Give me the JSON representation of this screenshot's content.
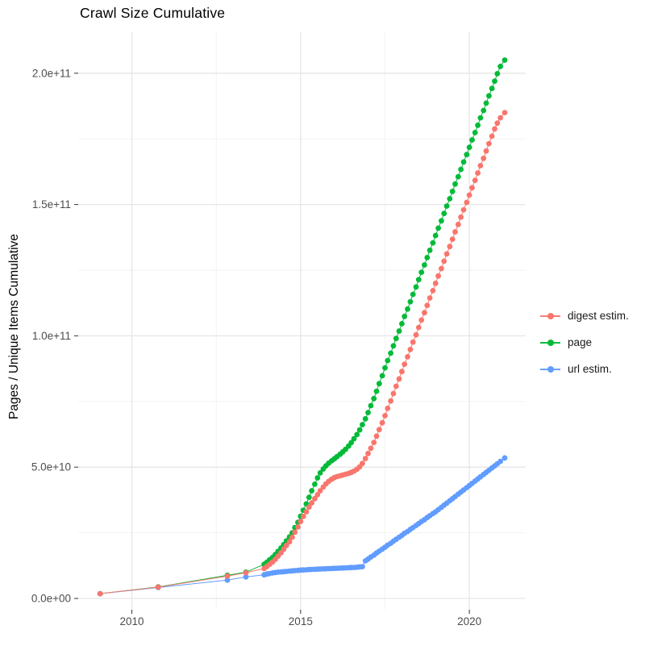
{
  "chart": {
    "title": "Crawl Size Cumulative",
    "ylabel": "Pages / Unique Items Cumulative",
    "xlabel": ""
  },
  "colors": {
    "digest": "#F8766D",
    "page": "#00BA38",
    "url": "#619CFF",
    "grid_major": "#E6E6E6",
    "grid_minor": "#F2F2F2",
    "axis_text": "#4D4D4D",
    "tick_mark": "#333333"
  },
  "chart_data": {
    "type": "scatter",
    "title": "Crawl Size Cumulative",
    "xlabel": "",
    "ylabel": "Pages / Unique Items Cumulative",
    "legend_position": "right",
    "grid": "on",
    "note_units": "point values given as [year, size_in_billions]; 50 billions = 5.0e+10 on axis",
    "x_range": [
      2008.41,
      2021.67
    ],
    "y_range_billions": [
      -4.3,
      215.6
    ],
    "x_ticks": {
      "major": [
        2010,
        2015,
        2020
      ],
      "minor": [
        2012.5,
        2017.5
      ],
      "labels": [
        "2010",
        "2015",
        "2020"
      ]
    },
    "y_ticks": {
      "major_billions": [
        0,
        50,
        100,
        150,
        200
      ],
      "minor_billions": [
        25,
        75,
        125,
        175
      ],
      "labels": [
        "0.0e+00",
        "5.0e+10",
        "1.0e+11",
        "1.5e+11",
        "2.0e+11"
      ]
    },
    "z_order": [
      1,
      2,
      0
    ],
    "series": [
      {
        "name": "digest estim.",
        "color": "#F8766D",
        "points": [
          [
            2009.06,
            1.8
          ],
          [
            2010.78,
            4.3
          ],
          [
            2012.83,
            8.5
          ],
          [
            2013.38,
            9.8
          ],
          [
            2013.92,
            11.4
          ],
          [
            2014,
            12.2
          ],
          [
            2014.08,
            13
          ],
          [
            2014.17,
            13.9
          ],
          [
            2014.25,
            14.9
          ],
          [
            2014.33,
            16.1
          ],
          [
            2014.42,
            17.4
          ],
          [
            2014.5,
            18.8
          ],
          [
            2014.58,
            20.2
          ],
          [
            2014.67,
            21.6
          ],
          [
            2014.75,
            23.3
          ],
          [
            2014.83,
            25.2
          ],
          [
            2014.92,
            27.2
          ],
          [
            2015,
            29.3
          ],
          [
            2015.08,
            31.2
          ],
          [
            2015.17,
            33
          ],
          [
            2015.25,
            34.8
          ],
          [
            2015.33,
            36.4
          ],
          [
            2015.42,
            38
          ],
          [
            2015.5,
            39.5
          ],
          [
            2015.58,
            41
          ],
          [
            2015.67,
            42.4
          ],
          [
            2015.75,
            43.6
          ],
          [
            2015.83,
            44.6
          ],
          [
            2015.92,
            45.4
          ],
          [
            2016,
            46
          ],
          [
            2016.08,
            46.4
          ],
          [
            2016.17,
            46.7
          ],
          [
            2016.25,
            47
          ],
          [
            2016.33,
            47.3
          ],
          [
            2016.42,
            47.6
          ],
          [
            2016.5,
            48
          ],
          [
            2016.58,
            48.5
          ],
          [
            2016.67,
            49.2
          ],
          [
            2016.75,
            50.1
          ],
          [
            2016.83,
            51.4
          ],
          [
            2016.92,
            53.3
          ],
          [
            2017,
            55.2
          ],
          [
            2017.08,
            57.2
          ],
          [
            2017.17,
            59.4
          ],
          [
            2017.25,
            61.8
          ],
          [
            2017.33,
            64.3
          ],
          [
            2017.42,
            66.9
          ],
          [
            2017.5,
            69.6
          ],
          [
            2017.58,
            72.4
          ],
          [
            2017.67,
            75.2
          ],
          [
            2017.75,
            78
          ],
          [
            2017.83,
            80.8
          ],
          [
            2017.92,
            83.6
          ],
          [
            2018,
            86.4
          ],
          [
            2018.08,
            89.2
          ],
          [
            2018.17,
            92
          ],
          [
            2018.25,
            94.8
          ],
          [
            2018.33,
            97.6
          ],
          [
            2018.42,
            100.4
          ],
          [
            2018.5,
            103.2
          ],
          [
            2018.58,
            106
          ],
          [
            2018.67,
            108.8
          ],
          [
            2018.75,
            111.6
          ],
          [
            2018.83,
            114.4
          ],
          [
            2018.92,
            117.2
          ],
          [
            2019,
            120
          ],
          [
            2019.08,
            122.8
          ],
          [
            2019.17,
            125.6
          ],
          [
            2019.25,
            128.4
          ],
          [
            2019.33,
            131.2
          ],
          [
            2019.42,
            134
          ],
          [
            2019.5,
            136.8
          ],
          [
            2019.58,
            139.6
          ],
          [
            2019.67,
            142.4
          ],
          [
            2019.75,
            145.2
          ],
          [
            2019.83,
            148
          ],
          [
            2019.92,
            150.8
          ],
          [
            2020,
            153.6
          ],
          [
            2020.08,
            156.4
          ],
          [
            2020.17,
            159.2
          ],
          [
            2020.25,
            162
          ],
          [
            2020.33,
            164.8
          ],
          [
            2020.42,
            167.6
          ],
          [
            2020.5,
            170.4
          ],
          [
            2020.58,
            173.2
          ],
          [
            2020.67,
            176
          ],
          [
            2020.75,
            178.8
          ],
          [
            2020.83,
            181
          ],
          [
            2020.92,
            183
          ],
          [
            2021.05,
            185
          ]
        ]
      },
      {
        "name": "page",
        "color": "#00BA38",
        "points": [
          [
            2009.06,
            1.8
          ],
          [
            2010.78,
            4.4
          ],
          [
            2012.83,
            8.8
          ],
          [
            2013.38,
            10
          ],
          [
            2013.92,
            13
          ],
          [
            2014,
            13.8
          ],
          [
            2014.08,
            14.7
          ],
          [
            2014.17,
            15.6
          ],
          [
            2014.25,
            16.7
          ],
          [
            2014.33,
            17.9
          ],
          [
            2014.42,
            19.2
          ],
          [
            2014.5,
            20.5
          ],
          [
            2014.58,
            21.9
          ],
          [
            2014.67,
            23.4
          ],
          [
            2014.75,
            25
          ],
          [
            2014.83,
            27
          ],
          [
            2014.92,
            29
          ],
          [
            2015,
            31.3
          ],
          [
            2015.08,
            33.6
          ],
          [
            2015.17,
            36
          ],
          [
            2015.25,
            38.5
          ],
          [
            2015.33,
            41
          ],
          [
            2015.42,
            43.5
          ],
          [
            2015.5,
            45.9
          ],
          [
            2015.58,
            47.8
          ],
          [
            2015.67,
            49.3
          ],
          [
            2015.75,
            50.5
          ],
          [
            2015.83,
            51.5
          ],
          [
            2015.92,
            52.4
          ],
          [
            2016,
            53.2
          ],
          [
            2016.08,
            54
          ],
          [
            2016.17,
            54.9
          ],
          [
            2016.25,
            55.8
          ],
          [
            2016.33,
            56.8
          ],
          [
            2016.42,
            58
          ],
          [
            2016.5,
            59.3
          ],
          [
            2016.58,
            60.8
          ],
          [
            2016.67,
            62.4
          ],
          [
            2016.75,
            64.2
          ],
          [
            2016.83,
            66.2
          ],
          [
            2016.92,
            68.4
          ],
          [
            2017,
            70.8
          ],
          [
            2017.08,
            73.4
          ],
          [
            2017.17,
            76.1
          ],
          [
            2017.25,
            78.9
          ],
          [
            2017.33,
            81.8
          ],
          [
            2017.42,
            84.8
          ],
          [
            2017.5,
            87.8
          ],
          [
            2017.58,
            90.6
          ],
          [
            2017.67,
            93.4
          ],
          [
            2017.75,
            96.2
          ],
          [
            2017.83,
            99
          ],
          [
            2017.92,
            101.8
          ],
          [
            2018,
            104.6
          ],
          [
            2018.08,
            107.4
          ],
          [
            2018.17,
            110.2
          ],
          [
            2018.25,
            113
          ],
          [
            2018.33,
            115.8
          ],
          [
            2018.42,
            118.6
          ],
          [
            2018.5,
            121.4
          ],
          [
            2018.58,
            124.2
          ],
          [
            2018.67,
            127
          ],
          [
            2018.75,
            129.8
          ],
          [
            2018.83,
            132.6
          ],
          [
            2018.92,
            135.4
          ],
          [
            2019,
            138.2
          ],
          [
            2019.08,
            141
          ],
          [
            2019.17,
            143.8
          ],
          [
            2019.25,
            146.6
          ],
          [
            2019.33,
            149.4
          ],
          [
            2019.42,
            152.2
          ],
          [
            2019.5,
            155
          ],
          [
            2019.58,
            157.8
          ],
          [
            2019.67,
            160.6
          ],
          [
            2019.75,
            163.4
          ],
          [
            2019.83,
            166.2
          ],
          [
            2019.92,
            169
          ],
          [
            2020,
            171.8
          ],
          [
            2020.08,
            174.6
          ],
          [
            2020.17,
            177.4
          ],
          [
            2020.25,
            180.2
          ],
          [
            2020.33,
            183
          ],
          [
            2020.42,
            185.8
          ],
          [
            2020.5,
            188.6
          ],
          [
            2020.58,
            191.4
          ],
          [
            2020.67,
            194.2
          ],
          [
            2020.75,
            197
          ],
          [
            2020.83,
            199.8
          ],
          [
            2020.92,
            202.6
          ],
          [
            2021.05,
            205
          ]
        ]
      },
      {
        "name": "url estim.",
        "color": "#619CFF",
        "points": [
          [
            2009.06,
            1.8
          ],
          [
            2010.78,
            4.15
          ],
          [
            2012.83,
            7
          ],
          [
            2013.38,
            8.2
          ],
          [
            2013.92,
            9
          ],
          [
            2014,
            9.3
          ],
          [
            2014.08,
            9.5
          ],
          [
            2014.17,
            9.7
          ],
          [
            2014.25,
            9.85
          ],
          [
            2014.33,
            10
          ],
          [
            2014.42,
            10.1
          ],
          [
            2014.5,
            10.2
          ],
          [
            2014.58,
            10.3
          ],
          [
            2014.67,
            10.4
          ],
          [
            2014.75,
            10.5
          ],
          [
            2014.83,
            10.6
          ],
          [
            2014.92,
            10.7
          ],
          [
            2015,
            10.8
          ],
          [
            2015.08,
            10.85
          ],
          [
            2015.17,
            10.9
          ],
          [
            2015.25,
            11
          ],
          [
            2015.33,
            11.05
          ],
          [
            2015.42,
            11.1
          ],
          [
            2015.5,
            11.15
          ],
          [
            2015.58,
            11.2
          ],
          [
            2015.67,
            11.25
          ],
          [
            2015.75,
            11.3
          ],
          [
            2015.83,
            11.35
          ],
          [
            2015.92,
            11.4
          ],
          [
            2016,
            11.45
          ],
          [
            2016.08,
            11.5
          ],
          [
            2016.17,
            11.55
          ],
          [
            2016.25,
            11.6
          ],
          [
            2016.33,
            11.65
          ],
          [
            2016.42,
            11.7
          ],
          [
            2016.5,
            11.75
          ],
          [
            2016.58,
            11.8
          ],
          [
            2016.67,
            11.9
          ],
          [
            2016.75,
            12
          ],
          [
            2016.83,
            12.1
          ],
          [
            2016.92,
            14.3
          ],
          [
            2017,
            15
          ],
          [
            2017.08,
            15.8
          ],
          [
            2017.17,
            16.5
          ],
          [
            2017.25,
            17.3
          ],
          [
            2017.33,
            18
          ],
          [
            2017.42,
            18.8
          ],
          [
            2017.5,
            19.5
          ],
          [
            2017.58,
            20.3
          ],
          [
            2017.67,
            21
          ],
          [
            2017.75,
            21.8
          ],
          [
            2017.83,
            22.5
          ],
          [
            2017.92,
            23.3
          ],
          [
            2018,
            24
          ],
          [
            2018.08,
            24.8
          ],
          [
            2018.17,
            25.5
          ],
          [
            2018.25,
            26.3
          ],
          [
            2018.33,
            27
          ],
          [
            2018.42,
            27.8
          ],
          [
            2018.5,
            28.5
          ],
          [
            2018.58,
            29.3
          ],
          [
            2018.67,
            30
          ],
          [
            2018.75,
            30.8
          ],
          [
            2018.83,
            31.5
          ],
          [
            2018.92,
            32.3
          ],
          [
            2019,
            33
          ],
          [
            2019.08,
            33.8
          ],
          [
            2019.17,
            34.7
          ],
          [
            2019.25,
            35.5
          ],
          [
            2019.33,
            36.3
          ],
          [
            2019.42,
            37.2
          ],
          [
            2019.5,
            38
          ],
          [
            2019.58,
            38.8
          ],
          [
            2019.67,
            39.7
          ],
          [
            2019.75,
            40.5
          ],
          [
            2019.83,
            41.3
          ],
          [
            2019.92,
            42.2
          ],
          [
            2020,
            43
          ],
          [
            2020.08,
            43.8
          ],
          [
            2020.17,
            44.7
          ],
          [
            2020.25,
            45.5
          ],
          [
            2020.33,
            46.3
          ],
          [
            2020.42,
            47.2
          ],
          [
            2020.5,
            48
          ],
          [
            2020.58,
            48.8
          ],
          [
            2020.67,
            49.7
          ],
          [
            2020.75,
            50.5
          ],
          [
            2020.83,
            51.3
          ],
          [
            2020.92,
            52.2
          ],
          [
            2021.05,
            53.5
          ]
        ]
      }
    ]
  }
}
